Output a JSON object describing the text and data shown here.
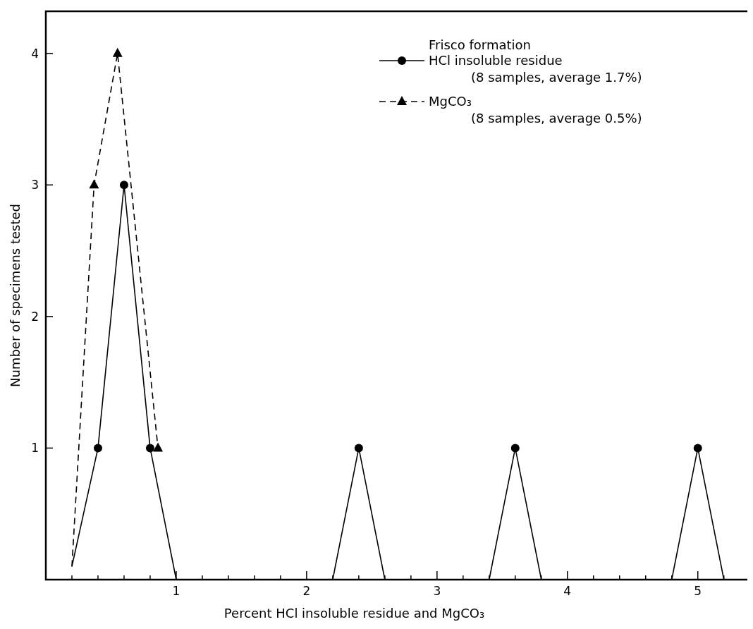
{
  "chart_data": {
    "type": "line",
    "xlabel": "Percent  HCl insoluble residue  and  MgCO₃",
    "ylabel": "Number of specimens tested",
    "legend_title": "Frisco formation",
    "legend": "top right",
    "xlim": [
      0,
      5.38
    ],
    "xticks": [
      {
        "value": 0.2,
        "label": null
      },
      {
        "value": 0.4,
        "label": null
      },
      {
        "value": 0.6,
        "label": null
      },
      {
        "value": 0.8,
        "label": null
      },
      1,
      {
        "value": 1.2,
        "label": null
      },
      {
        "value": 1.4,
        "label": null
      },
      {
        "value": 1.6,
        "label": null
      },
      {
        "value": 1.8,
        "label": null
      },
      2,
      {
        "value": 2.2,
        "label": null
      },
      {
        "value": 2.4,
        "label": null
      },
      {
        "value": 2.6,
        "label": null
      },
      {
        "value": 2.8,
        "label": null
      },
      3,
      {
        "value": 3.2,
        "label": null
      },
      {
        "value": 3.4,
        "label": null
      },
      {
        "value": 3.6,
        "label": null
      },
      {
        "value": 3.8,
        "label": null
      },
      4,
      {
        "value": 4.2,
        "label": null
      },
      {
        "value": 4.4,
        "label": null
      },
      {
        "value": 4.6,
        "label": null
      },
      {
        "value": 4.8,
        "label": null
      },
      5,
      {
        "value": 5.2,
        "label": null
      }
    ],
    "ylim": [
      0,
      4.32
    ],
    "yticks": [
      1,
      2,
      3,
      4
    ],
    "grid": false,
    "series": [
      {
        "name": "HCl insoluble residue\n(8 samples, average 1.7%)",
        "color": "#000000",
        "line_style": "solid",
        "marker": "none",
        "x": [
          0.2,
          0.4,
          0.6,
          0.8,
          1.0,
          2.2,
          2.4,
          2.6,
          3.4,
          3.6,
          3.8,
          4.8,
          5.0,
          5.2
        ],
        "values": [
          0.1,
          1,
          3,
          1,
          0,
          0,
          1,
          0,
          0,
          1,
          0,
          0,
          1,
          0
        ]
      },
      {
        "type": "scatter",
        "color": "#000000",
        "marker": "circle",
        "x": [
          0.4,
          0.6,
          0.8,
          2.4,
          3.6,
          5.0
        ],
        "values": [
          1,
          3,
          1,
          1,
          1,
          1
        ]
      },
      {
        "name": "MgCO₃\n(8 samples, average 0.5%)",
        "color": "#000000",
        "line_style": "dashed",
        "marker": "none",
        "x": [
          0.2,
          0.37,
          0.55,
          0.86
        ],
        "values": [
          0.1,
          3,
          4,
          1
        ]
      },
      {
        "type": "scatter",
        "color": "#000000",
        "marker": "triangle",
        "x": [
          0.37,
          0.55,
          0.86
        ],
        "values": [
          3,
          4,
          1
        ]
      }
    ]
  }
}
